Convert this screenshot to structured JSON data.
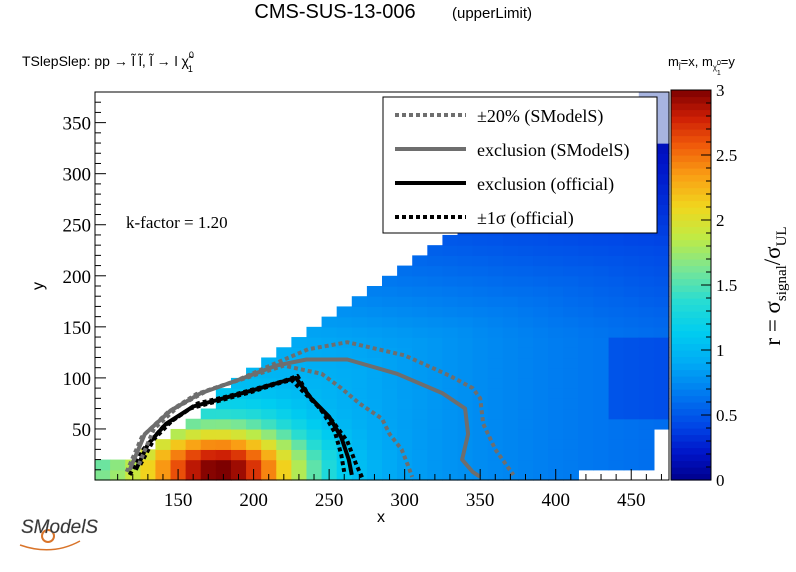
{
  "chart_data": {
    "type": "heatmap",
    "title": "CMS-SUS-13-006",
    "title_suffix": "(upperLimit)",
    "process_label": "TSlepSlep: pp  → l̃ l̃, l̃  → l χ̃",
    "process_sup": "0",
    "process_sub": "1",
    "mass_label": "m",
    "mass_label_parts": [
      "m",
      "l̃",
      "=x, m",
      "χ̃",
      "0",
      "1",
      "=y"
    ],
    "xlabel": "x",
    "ylabel": "y",
    "zlabel": "r = σ",
    "zlabel_parts": [
      "r = σ",
      "signal",
      "/σ",
      "UL"
    ],
    "annotation": "k-factor = 1.20",
    "logo_text": "SModelS",
    "xlim": [
      95,
      475
    ],
    "ylim": [
      0,
      380
    ],
    "zlim": [
      0,
      3
    ],
    "x_ticks": [
      "150",
      "200",
      "250",
      "300",
      "350",
      "400",
      "450"
    ],
    "x_tick_values": [
      150,
      200,
      250,
      300,
      350,
      400,
      450
    ],
    "y_ticks": [
      "50",
      "100",
      "150",
      "200",
      "250",
      "300",
      "350"
    ],
    "y_tick_values": [
      50,
      100,
      150,
      200,
      250,
      300,
      350
    ],
    "z_ticks": [
      "0",
      "0.5",
      "1",
      "1.5",
      "2",
      "2.5",
      "3"
    ],
    "z_tick_values": [
      0,
      0.5,
      1,
      1.5,
      2,
      2.5,
      3
    ],
    "legend": {
      "placement": "top-right",
      "entries": [
        {
          "label": "±20% (SModelS)",
          "color": "#6e6e6e",
          "style": "dotted"
        },
        {
          "label": "exclusion (SModelS)",
          "color": "#6e6e6e",
          "style": "solid"
        },
        {
          "label": "exclusion (official)",
          "color": "#000000",
          "style": "solid"
        },
        {
          "label": "±1σ (official)",
          "color": "#000000",
          "style": "dotted"
        }
      ]
    },
    "grid": false,
    "series": [
      {
        "name": "exclusion (official)",
        "x": [
          122,
          130,
          142,
          160,
          180,
          200,
          218,
          228,
          238,
          250,
          258,
          263,
          265
        ],
        "y": [
          10,
          35,
          55,
          72,
          80,
          88,
          96,
          100,
          80,
          62,
          42,
          20,
          5
        ]
      },
      {
        "name": "±1σ (official)",
        "x": [
          118,
          127,
          140,
          158,
          178,
          198,
          215,
          225,
          240,
          252,
          262,
          268,
          272
        ],
        "y": [
          5,
          30,
          52,
          70,
          78,
          86,
          94,
          98,
          76,
          58,
          38,
          15,
          2
        ]
      },
      {
        "name": "±1σ (official)",
        "x": [
          125,
          134,
          146,
          163,
          183,
          203,
          220,
          229,
          236,
          246,
          254,
          258,
          260
        ],
        "y": [
          15,
          40,
          58,
          75,
          82,
          90,
          97,
          102,
          84,
          66,
          46,
          25,
          8
        ]
      },
      {
        "name": "exclusion (SModelS)",
        "x": [
          118,
          128,
          145,
          165,
          190,
          215,
          235,
          262,
          295,
          325,
          340,
          342,
          338,
          345,
          350
        ],
        "y": [
          10,
          45,
          68,
          85,
          98,
          112,
          118,
          118,
          104,
          85,
          70,
          45,
          20,
          8,
          3
        ]
      },
      {
        "name": "±20% (SModelS)",
        "x": [
          116,
          126,
          143,
          162,
          188,
          214,
          236,
          262,
          300,
          330,
          345,
          350,
          352,
          360,
          372
        ],
        "y": [
          8,
          42,
          66,
          84,
          97,
          114,
          128,
          135,
          122,
          102,
          90,
          80,
          55,
          30,
          5
        ]
      },
      {
        "name": "±20% (SModelS)",
        "x": [
          124,
          134,
          150,
          170,
          195,
          220,
          245,
          258,
          270,
          285,
          290,
          298,
          302,
          305
        ],
        "y": [
          15,
          50,
          72,
          88,
          100,
          112,
          104,
          90,
          75,
          60,
          45,
          30,
          15,
          3
        ]
      }
    ]
  }
}
